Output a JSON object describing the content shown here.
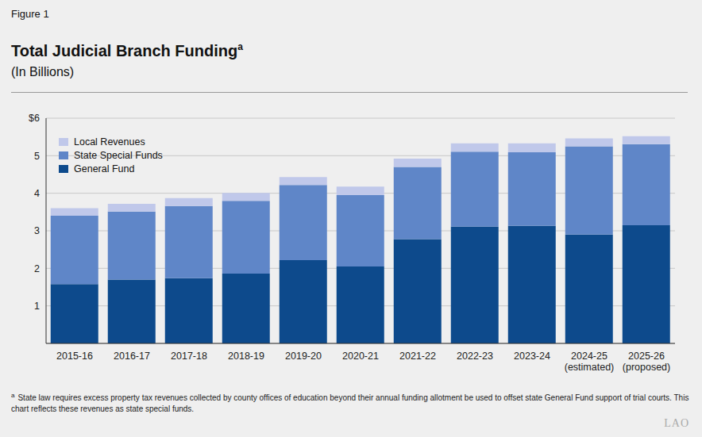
{
  "chart_data": {
    "type": "bar",
    "figure_label": "Figure 1",
    "title": "Total Judicial Branch Funding",
    "title_superscript": "a",
    "subtitle": "(In Billions)",
    "categories": [
      "2015-16",
      "2016-17",
      "2017-18",
      "2018-19",
      "2019-20",
      "2020-21",
      "2021-22",
      "2022-23",
      "2023-24",
      "2024-25 (estimated)",
      "2025-26 (proposed)"
    ],
    "series": [
      {
        "name": "General Fund",
        "color": "#0d4a8c",
        "values": [
          1.58,
          1.7,
          1.74,
          1.86,
          2.22,
          2.05,
          2.78,
          3.11,
          3.13,
          2.9,
          3.15
        ]
      },
      {
        "name": "State Special Funds",
        "color": "#5f86c8",
        "values": [
          1.82,
          1.81,
          1.92,
          1.94,
          2.0,
          1.9,
          1.92,
          2.0,
          1.96,
          2.35,
          2.16
        ]
      },
      {
        "name": "Local Revenues",
        "color": "#c0c8ea",
        "values": [
          0.2,
          0.21,
          0.21,
          0.21,
          0.21,
          0.23,
          0.22,
          0.22,
          0.24,
          0.21,
          0.21
        ]
      }
    ],
    "stacked": true,
    "ylim": [
      0,
      6
    ],
    "yticks": [
      1,
      2,
      3,
      4,
      5,
      {
        "value": 6,
        "label": "$6"
      }
    ],
    "grid": true,
    "legend": "top-left",
    "footnote": {
      "marker": "a",
      "text": "State law requires excess property tax revenues collected by county offices of education beyond their annual funding allotment be used to offset state General Fund support of trial courts. This chart reflects these revenues as state special funds."
    },
    "credit": "LAO"
  }
}
